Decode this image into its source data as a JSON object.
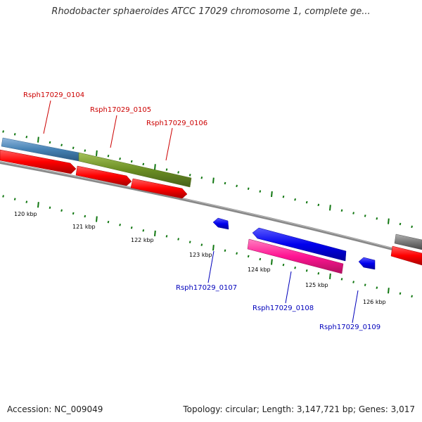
{
  "title": "Rhodobacter sphaeroides ATCC 17029 chromosome 1, complete ge...",
  "footer": {
    "accession": "Accession: NC_009049",
    "stats": "Topology: circular; Length: 3,147,721 bp; Genes: 3,017"
  },
  "scale_labels": [
    "120 kbp",
    "121 kbp",
    "122 kbp",
    "123 kbp",
    "124 kbp",
    "125 kbp",
    "126 kbp"
  ],
  "genes": {
    "forward": [
      {
        "id": "Rsph17029_0104",
        "label_color": "#cc0000"
      },
      {
        "id": "Rsph17029_0105",
        "label_color": "#cc0000"
      },
      {
        "id": "Rsph17029_0106",
        "label_color": "#cc0000"
      }
    ],
    "reverse": [
      {
        "id": "Rsph17029_0107",
        "label_color": "#0000bb"
      },
      {
        "id": "Rsph17029_0108",
        "label_color": "#0000bb"
      },
      {
        "id": "Rsph17029_0109",
        "label_color": "#0000bb"
      }
    ]
  },
  "colors": {
    "cds_red": "#ff0000",
    "cds_blue": "#0000ee",
    "cds_pink": "#ff1493",
    "cds_steelblue": "#4682b4",
    "cds_olive": "#6b8e23",
    "cds_gray": "#808080",
    "backbone": "#777777",
    "tick": "#117711"
  }
}
